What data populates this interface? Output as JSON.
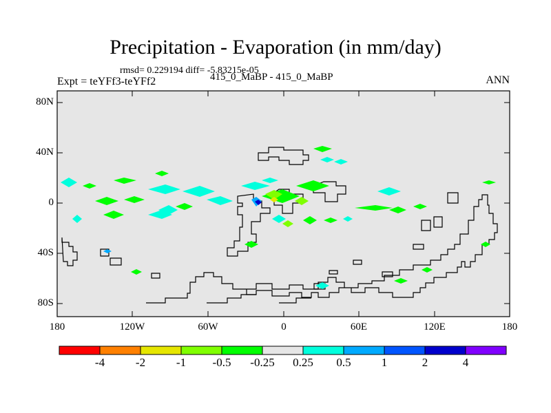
{
  "title": "Precipitation - Evaporation (in mm/day)",
  "stats": "rmsd= 0.229194 diff= -5.83215e-05",
  "experiment": "Expt = teYFf3-teYFf2",
  "case": "415_0_MaBP - 415_0_MaBP",
  "season": "ANN",
  "lat_labels": [
    "80N",
    "40N",
    "0",
    "40S",
    "80S"
  ],
  "lon_labels": [
    "180",
    "120W",
    "60W",
    "0",
    "60E",
    "120E",
    "180"
  ],
  "colorbar": {
    "colors": [
      "#ff0000",
      "#ff8000",
      "#e6e600",
      "#80ff00",
      "#00ff00",
      "#e6e6e6",
      "#00ffdd",
      "#00aaff",
      "#0055ff",
      "#0000cc",
      "#8000ff"
    ],
    "labels": [
      "-4",
      "-2",
      "-1",
      "-0.5",
      "-0.25",
      "0.25",
      "0.5",
      "1",
      "2",
      "4"
    ]
  },
  "colors": {
    "background": "#e6e6e6",
    "coast": "#000000"
  }
}
